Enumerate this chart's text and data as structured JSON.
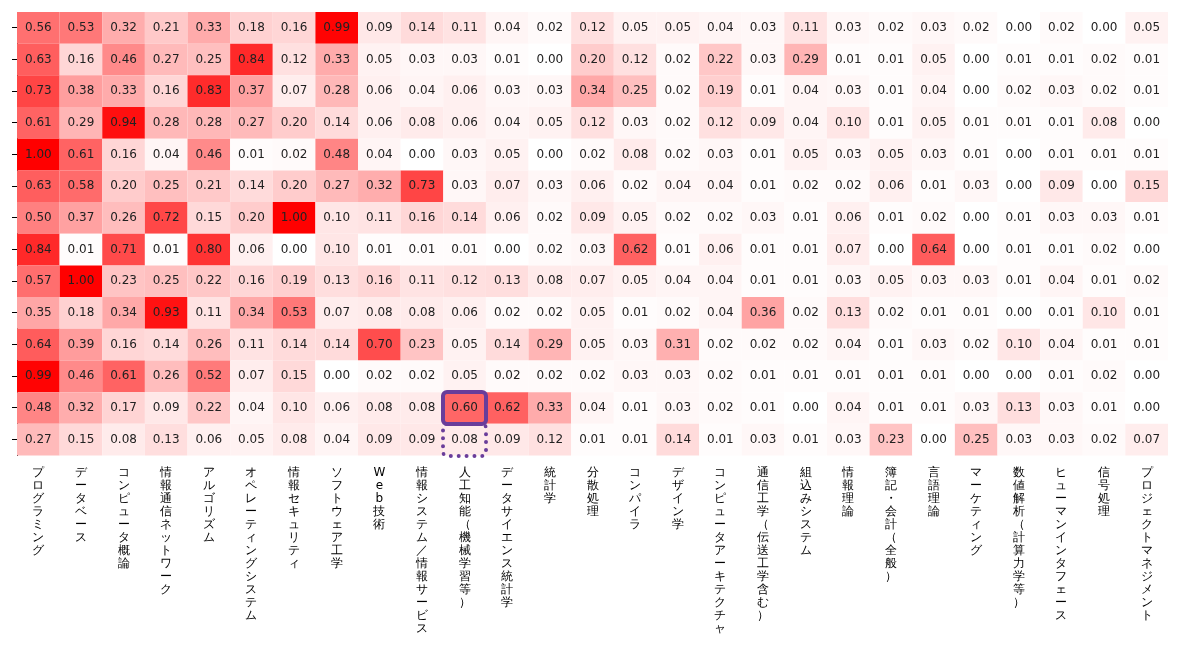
{
  "chart_data": {
    "type": "heatmap",
    "color": "#ff0000",
    "tick_labels": "x",
    "cell_labels": [
      [
        "0.56",
        "0.53",
        "0.32",
        "0.21",
        "0.33",
        "0.18",
        "0.16",
        "0.99",
        "0.09",
        "0.14",
        "0.11",
        "0.04",
        "0.02",
        "0.12",
        "0.05",
        "0.05",
        "0.04",
        "0.03",
        "0.11",
        "0.03",
        "0.02",
        "0.03",
        "0.02",
        "0.00",
        "0.02",
        "0.00",
        "0.05"
      ],
      [
        "0.63",
        "0.16",
        "0.46",
        "0.27",
        "0.25",
        "0.84",
        "0.12",
        "0.33",
        "0.05",
        "0.03",
        "0.03",
        "0.01",
        "0.00",
        "0.20",
        "0.12",
        "0.02",
        "0.22",
        "0.03",
        "0.29",
        "0.01",
        "0.01",
        "0.05",
        "0.00",
        "0.01",
        "0.01",
        "0.02",
        "0.01"
      ],
      [
        "0.73",
        "0.38",
        "0.33",
        "0.16",
        "0.83",
        "0.37",
        "0.07",
        "0.28",
        "0.06",
        "0.04",
        "0.06",
        "0.03",
        "0.03",
        "0.34",
        "0.25",
        "0.02",
        "0.19",
        "0.01",
        "0.04",
        "0.03",
        "0.01",
        "0.04",
        "0.00",
        "0.02",
        "0.03",
        "0.02",
        "0.01"
      ],
      [
        "0.61",
        "0.29",
        "0.94",
        "0.28",
        "0.28",
        "0.27",
        "0.20",
        "0.14",
        "0.06",
        "0.08",
        "0.06",
        "0.04",
        "0.05",
        "0.12",
        "0.03",
        "0.02",
        "0.12",
        "0.09",
        "0.04",
        "0.10",
        "0.01",
        "0.05",
        "0.01",
        "0.01",
        "0.01",
        "0.08",
        "0.00"
      ],
      [
        "1.00",
        "0.61",
        "0.16",
        "0.04",
        "0.46",
        "0.01",
        "0.02",
        "0.48",
        "0.04",
        "0.00",
        "0.03",
        "0.05",
        "0.00",
        "0.02",
        "0.08",
        "0.02",
        "0.03",
        "0.01",
        "0.05",
        "0.03",
        "0.05",
        "0.03",
        "0.01",
        "0.00",
        "0.01",
        "0.01",
        "0.01"
      ],
      [
        "0.63",
        "0.58",
        "0.20",
        "0.25",
        "0.21",
        "0.14",
        "0.20",
        "0.27",
        "0.32",
        "0.73",
        "0.03",
        "0.07",
        "0.03",
        "0.06",
        "0.02",
        "0.04",
        "0.04",
        "0.01",
        "0.02",
        "0.02",
        "0.06",
        "0.01",
        "0.03",
        "0.00",
        "0.09",
        "0.00",
        "0.15"
      ],
      [
        "0.50",
        "0.37",
        "0.26",
        "0.72",
        "0.15",
        "0.20",
        "1.00",
        "0.10",
        "0.11",
        "0.16",
        "0.14",
        "0.06",
        "0.02",
        "0.09",
        "0.05",
        "0.02",
        "0.02",
        "0.03",
        "0.01",
        "0.06",
        "0.01",
        "0.02",
        "0.00",
        "0.01",
        "0.03",
        "0.03",
        "0.01"
      ],
      [
        "0.84",
        "0.01",
        "0.71",
        "0.01",
        "0.80",
        "0.06",
        "0.00",
        "0.10",
        "0.01",
        "0.01",
        "0.01",
        "0.00",
        "0.02",
        "0.03",
        "0.62",
        "0.01",
        "0.06",
        "0.01",
        "0.01",
        "0.07",
        "0.00",
        "0.64",
        "0.00",
        "0.01",
        "0.01",
        "0.02",
        "0.00"
      ],
      [
        "0.57",
        "1.00",
        "0.23",
        "0.25",
        "0.22",
        "0.16",
        "0.19",
        "0.13",
        "0.16",
        "0.11",
        "0.12",
        "0.13",
        "0.08",
        "0.07",
        "0.05",
        "0.04",
        "0.04",
        "0.01",
        "0.01",
        "0.03",
        "0.05",
        "0.03",
        "0.03",
        "0.01",
        "0.04",
        "0.01",
        "0.02"
      ],
      [
        "0.35",
        "0.18",
        "0.34",
        "0.93",
        "0.11",
        "0.34",
        "0.53",
        "0.07",
        "0.08",
        "0.08",
        "0.06",
        "0.02",
        "0.02",
        "0.05",
        "0.01",
        "0.02",
        "0.04",
        "0.36",
        "0.02",
        "0.13",
        "0.02",
        "0.01",
        "0.01",
        "0.00",
        "0.01",
        "0.10",
        "0.01"
      ],
      [
        "0.64",
        "0.39",
        "0.16",
        "0.14",
        "0.26",
        "0.11",
        "0.14",
        "0.14",
        "0.70",
        "0.23",
        "0.05",
        "0.14",
        "0.29",
        "0.05",
        "0.03",
        "0.31",
        "0.02",
        "0.02",
        "0.02",
        "0.04",
        "0.01",
        "0.03",
        "0.02",
        "0.10",
        "0.04",
        "0.01",
        "0.01"
      ],
      [
        "0.99",
        "0.46",
        "0.61",
        "0.26",
        "0.52",
        "0.07",
        "0.15",
        "0.00",
        "0.02",
        "0.02",
        "0.05",
        "0.02",
        "0.02",
        "0.02",
        "0.03",
        "0.03",
        "0.02",
        "0.01",
        "0.01",
        "0.01",
        "0.01",
        "0.01",
        "0.00",
        "0.00",
        "0.01",
        "0.02",
        "0.00"
      ],
      [
        "0.48",
        "0.32",
        "0.17",
        "0.09",
        "0.22",
        "0.04",
        "0.10",
        "0.06",
        "0.08",
        "0.08",
        "0.60",
        "0.62",
        "0.33",
        "0.04",
        "0.01",
        "0.03",
        "0.02",
        "0.01",
        "0.00",
        "0.04",
        "0.01",
        "0.01",
        "0.03",
        "0.13",
        "0.03",
        "0.01",
        "0.00"
      ],
      [
        "0.27",
        "0.15",
        "0.08",
        "0.13",
        "0.06",
        "0.05",
        "0.08",
        "0.04",
        "0.09",
        "0.09",
        "0.08",
        "0.09",
        "0.12",
        "0.01",
        "0.01",
        "0.14",
        "0.01",
        "0.03",
        "0.01",
        "0.03",
        "0.23",
        "0.00",
        "0.25",
        "0.03",
        "0.03",
        "0.02",
        "0.07"
      ]
    ],
    "categories": [
      "プログラミング",
      "データベース",
      "コンピュータ概論",
      "情報通信ネットワーク",
      "アルゴリズム",
      "オペレーティングシステム",
      "情報セキュリティ",
      "ソフトウェア工学",
      "Web技術",
      "情報システム／情報サービス",
      "人工知能（機械学習等）",
      "データサイエンス統計学",
      "統計学",
      "分散処理",
      "コンパイラ",
      "デザイン学",
      "コンピュータアーキテクチャ",
      "通信工学（伝送工学含む）",
      "組込みシステム",
      "情報理論",
      "簿記・会計（全般）",
      "言語理論",
      "マーケティング",
      "数値解析（計算力学等）",
      "ヒューマンインタフェース",
      "信号処理",
      "プロジェクトマネジメント"
    ],
    "y_categories": [
      null,
      null,
      null,
      null,
      null,
      null,
      null,
      null,
      null,
      null,
      null,
      null,
      null,
      null
    ],
    "cells": [
      [
        0.56,
        0.53,
        0.32,
        0.21,
        0.33,
        0.18,
        0.16,
        0.99,
        0.09,
        0.14,
        0.11,
        0.04,
        0.02,
        0.12,
        0.05,
        0.05,
        0.04,
        0.03,
        0.11,
        0.03,
        0.02,
        0.03,
        0.02,
        0.0,
        0.02,
        0.0,
        0.05
      ],
      [
        0.63,
        0.16,
        0.46,
        0.27,
        0.25,
        0.84,
        0.12,
        0.33,
        0.05,
        0.03,
        0.03,
        0.01,
        0.0,
        0.2,
        0.12,
        0.02,
        0.22,
        0.03,
        0.29,
        0.01,
        0.01,
        0.05,
        0.0,
        0.01,
        0.01,
        0.02,
        0.01
      ],
      [
        0.73,
        0.38,
        0.33,
        0.16,
        0.83,
        0.37,
        0.07,
        0.28,
        0.06,
        0.04,
        0.06,
        0.03,
        0.03,
        0.34,
        0.25,
        0.02,
        0.19,
        0.01,
        0.04,
        0.03,
        0.01,
        0.04,
        0.0,
        0.02,
        0.03,
        0.02,
        0.01
      ],
      [
        0.61,
        0.29,
        0.94,
        0.28,
        0.28,
        0.27,
        0.2,
        0.14,
        0.06,
        0.08,
        0.06,
        0.04,
        0.05,
        0.12,
        0.03,
        0.02,
        0.12,
        0.09,
        0.04,
        0.1,
        0.01,
        0.05,
        0.01,
        0.01,
        0.01,
        0.08,
        0.0
      ],
      [
        1.0,
        0.61,
        0.16,
        0.04,
        0.46,
        0.01,
        0.02,
        0.48,
        0.04,
        0.0,
        0.03,
        0.05,
        0.0,
        0.02,
        0.08,
        0.02,
        0.03,
        0.01,
        0.05,
        0.03,
        0.05,
        0.03,
        0.01,
        0.0,
        0.01,
        0.01,
        0.01
      ],
      [
        0.63,
        0.58,
        0.2,
        0.25,
        0.21,
        0.14,
        0.2,
        0.27,
        0.32,
        0.73,
        0.03,
        0.07,
        0.03,
        0.06,
        0.02,
        0.04,
        0.04,
        0.01,
        0.02,
        0.02,
        0.06,
        0.01,
        0.03,
        0.0,
        0.09,
        0.0,
        0.15
      ],
      [
        0.5,
        0.37,
        0.26,
        0.72,
        0.15,
        0.2,
        1.0,
        0.1,
        0.11,
        0.16,
        0.14,
        0.06,
        0.02,
        0.09,
        0.05,
        0.02,
        0.02,
        0.03,
        0.01,
        0.06,
        0.01,
        0.02,
        0.0,
        0.01,
        0.03,
        0.03,
        0.01
      ],
      [
        0.84,
        0.01,
        0.71,
        0.01,
        0.8,
        0.06,
        0.0,
        0.1,
        0.01,
        0.01,
        0.01,
        0.0,
        0.02,
        0.03,
        0.62,
        0.01,
        0.06,
        0.01,
        0.01,
        0.07,
        0.0,
        0.64,
        0.0,
        0.01,
        0.01,
        0.02,
        0.0
      ],
      [
        0.57,
        1.0,
        0.23,
        0.25,
        0.22,
        0.16,
        0.19,
        0.13,
        0.16,
        0.11,
        0.12,
        0.13,
        0.08,
        0.07,
        0.05,
        0.04,
        0.04,
        0.01,
        0.01,
        0.03,
        0.05,
        0.03,
        0.03,
        0.01,
        0.04,
        0.01,
        0.02
      ],
      [
        0.35,
        0.18,
        0.34,
        0.93,
        0.11,
        0.34,
        0.53,
        0.07,
        0.08,
        0.08,
        0.06,
        0.02,
        0.02,
        0.05,
        0.01,
        0.02,
        0.04,
        0.36,
        0.02,
        0.13,
        0.02,
        0.01,
        0.01,
        0.0,
        0.01,
        0.1,
        0.01
      ],
      [
        0.64,
        0.39,
        0.16,
        0.14,
        0.26,
        0.11,
        0.14,
        0.14,
        0.7,
        0.23,
        0.05,
        0.14,
        0.29,
        0.05,
        0.03,
        0.31,
        0.02,
        0.02,
        0.02,
        0.04,
        0.01,
        0.03,
        0.02,
        0.1,
        0.04,
        0.01,
        0.01
      ],
      [
        0.99,
        0.46,
        0.61,
        0.26,
        0.52,
        0.07,
        0.15,
        0.0,
        0.02,
        0.02,
        0.05,
        0.02,
        0.02,
        0.02,
        0.03,
        0.03,
        0.02,
        0.01,
        0.01,
        0.01,
        0.01,
        0.01,
        0.0,
        0.0,
        0.01,
        0.02,
        0.0
      ],
      [
        0.48,
        0.32,
        0.17,
        0.09,
        0.22,
        0.04,
        0.1,
        0.06,
        0.08,
        0.08,
        0.6,
        0.62,
        0.33,
        0.04,
        0.01,
        0.03,
        0.02,
        0.01,
        0.0,
        0.04,
        0.01,
        0.01,
        0.03,
        0.13,
        0.03,
        0.01,
        0.0
      ],
      [
        0.27,
        0.15,
        0.08,
        0.13,
        0.06,
        0.05,
        0.08,
        0.04,
        0.09,
        0.09,
        0.08,
        0.09,
        0.12,
        0.01,
        0.01,
        0.14,
        0.01,
        0.03,
        0.01,
        0.03,
        0.23,
        0.0,
        0.25,
        0.03,
        0.03,
        0.02,
        0.07
      ]
    ]
  }
}
